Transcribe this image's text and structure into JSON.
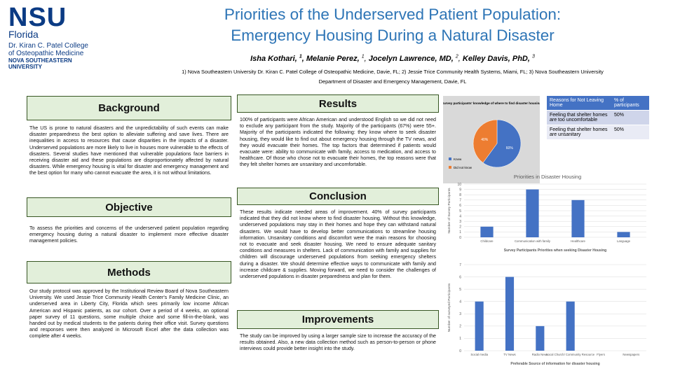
{
  "header": {
    "logo": {
      "mark": "NSU",
      "sub": "Florida",
      "lines": [
        "Dr. Kiran C. Patel College",
        "of Osteopathic Medicine"
      ],
      "bold_lines": [
        "NOVA SOUTHEASTERN",
        "UNIVERSITY"
      ]
    },
    "title": [
      "Priorities of the Underserved Patient Population:",
      "Emergency Housing During a Natural Disaster"
    ],
    "authors": [
      {
        "name": "Isha Kothari",
        "sup": "1"
      },
      {
        "name": "Melanie Perez",
        "sup": "1"
      },
      {
        "name": "Jocelyn Lawrence, MD",
        "sup": "2"
      },
      {
        "name": "Kelley Davis, PhD",
        "sup": "3"
      }
    ],
    "affiliations": [
      "1) Nova Southeastern University Dr. Kiran C. Patel College of Osteopathic Medicine, Davie, FL; 2) Jessie Trice Community Health Systems, Miami, FL; 3) Nova Southeastern University",
      "Department of Disaster and Emergency Management, Davie, FL"
    ]
  },
  "sections": {
    "background": {
      "heading": "Background",
      "text": "The US is prone to natural disasters and the unpredictability of such events can make disaster preparedness the best option to alleviate suffering and save lives. There are inequalities in access to resources that cause disparities in the impacts of a disaster. Underserved populations are more likely to live in houses more vulnerable to the effects of disasters. Several studies have mentioned that vulnerable populations face barriers in receiving disaster aid and these populations are disproportionately affected by natural disasters. While emergency housing is vital for disaster and emergency management and the best option for many who cannot evacuate the area, it is not without limitations."
    },
    "objective": {
      "heading": "Objective",
      "text": "To assess the priorities and concerns of the underserved patient population regarding emergency housing during a natural disaster to implement more effective disaster management policies."
    },
    "methods": {
      "heading": "Methods",
      "text": "Our study protocol was approved by the Institutional Review Board of Nova Southeastern University. We used Jessie Trice Community Health Center's Family Medicine Clinic, an underserved area in Liberty City, Florida which sees primarily low income African American and Hispanic patients, as our cohort. Over a period of 4 weeks, an optional paper survey of 11 questions, some multiple choice and some fill-in-the-blank, was handed out by medical students to the patients during their office visit. Survey questions and responses were then analyzed in Microsoft Excel after the data collection was complete after 4 weeks."
    },
    "results": {
      "heading": "Results",
      "text": "100% of participants were African American and understood English so we did not need to exclude any participant from the study. Majority of the participants (67%) were 55+. Majority of the participants indicated the following: they know where to seek disaster housing, they would like to find out about emergency housing through the TV news, and they would evacuate their homes. The top factors that determined if patients would evacuate were: ability to communicate with family, access to medication, and access to healthcare. Of those who chose not to evacuate their homes, the top reasons were that they felt shelter homes are unsanitary and uncomfortable."
    },
    "conclusion": {
      "heading": "Conclusion",
      "text": "These results indicate needed areas of improvement. 40% of survey participants indicated that they did not know where to find disaster housing. Without this knowledge, underserved populations may stay in their homes and hope they can withstand natural disasters. We would have to develop better communications to streamline housing information. Unsanitary conditions and discomfort were the main reasons for choosing not to evacuate and seek disaster housing. We need to ensure adequate sanitary conditions and measures in shelters. Lack of communication with family and supplies for children will discourage underserved populations from seeking emergency shelters during a disaster. We should determine effective ways to communicate with family and increase childcare & supplies. Moving forward, we need to consider the challenges of underserved populations in disaster preparedness and plan for them."
    },
    "improvements": {
      "heading": "Improvements",
      "text": "The study can be improved by using a larger sample size to increase the accuracy of the results obtained. Also, a new data collection method such as person-to-person or phone interviews could provide better insight into the study."
    }
  },
  "table": {
    "header": [
      "Reasons for Not Leaving Home",
      "% of participants"
    ],
    "rows": [
      [
        "Feeling that shelter homes are too uncomfortable",
        "50%"
      ],
      [
        "Feeling that shelter homes are unsanitary",
        "50%"
      ]
    ]
  },
  "chart_data": [
    {
      "type": "pie",
      "title": "Survey participants' knowledge of where to find disaster housing",
      "categories": [
        "Knew",
        "Did not know"
      ],
      "values": [
        60,
        40
      ],
      "value_labels": [
        "60%",
        "40%"
      ],
      "colors": [
        "#4472c4",
        "#ed7d31"
      ]
    },
    {
      "type": "bar",
      "title": "Priorities in Disaster Housing",
      "categories": [
        "Childcare",
        "Communication with family",
        "Healthcare",
        "Language"
      ],
      "values": [
        2,
        9,
        7,
        1
      ],
      "color": "#4472c4",
      "ylim": [
        0,
        10
      ],
      "yticks": [
        0,
        1,
        2,
        3,
        4,
        5,
        6,
        7,
        8,
        9,
        10
      ],
      "y_label": "Number of Survey Participants",
      "x_label": "Survey Participants Priorities when seeking Disaster Housing",
      "grid": true
    },
    {
      "type": "bar",
      "title": "",
      "categories": [
        "Social media",
        "TV News",
        "Radio News",
        "Local Church/ Community Resource",
        "Flyers",
        "Newspapers"
      ],
      "values": [
        4,
        6,
        2,
        4,
        0,
        0
      ],
      "color": "#4472c4",
      "ylim": [
        0,
        7
      ],
      "yticks": [
        0,
        1,
        2,
        3,
        4,
        5,
        6,
        7
      ],
      "y_label": "Number of surveyed Participants",
      "x_label": "Preferable Source of information for disaster housing",
      "grid": true
    }
  ]
}
